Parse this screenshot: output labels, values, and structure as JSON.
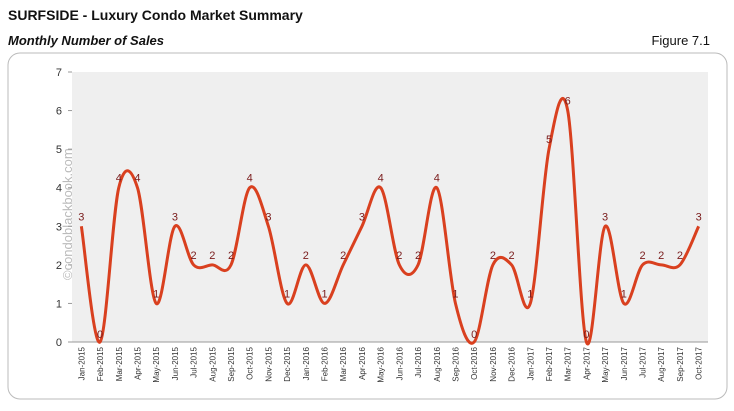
{
  "chart_data": {
    "type": "line",
    "title": "SURFSIDE - Luxury Condo Market Summary",
    "subtitle": "Monthly Number of Sales",
    "figure_label": "Figure 7.1",
    "watermark": "©condoblackbook.com",
    "categories": [
      "Jan-2015",
      "Feb-2015",
      "Mar-2015",
      "Apr-2015",
      "May-2015",
      "Jun-2015",
      "Jul-2015",
      "Aug-2015",
      "Sep-2015",
      "Oct-2015",
      "Nov-2015",
      "Dec-2015",
      "Jan-2016",
      "Feb-2016",
      "Mar-2016",
      "Apr-2016",
      "May-2016",
      "Jun-2016",
      "Jul-2016",
      "Aug-2016",
      "Sep-2016",
      "Oct-2016",
      "Nov-2016",
      "Dec-2016",
      "Jan-2017",
      "Feb-2017",
      "Mar-2017",
      "Apr-2017",
      "May-2017",
      "Jun-2017",
      "Jul-2017",
      "Aug-2017",
      "Sep-2017",
      "Oct-2017"
    ],
    "values": [
      3,
      0,
      4,
      4,
      1,
      3,
      2,
      2,
      2,
      4,
      3,
      1,
      2,
      1,
      2,
      3,
      4,
      2,
      2,
      4,
      1,
      0,
      2,
      2,
      1,
      5,
      6,
      0,
      3,
      1,
      2,
      2,
      2,
      3
    ],
    "color": "#d9401f",
    "label_color": "#7a1c1c",
    "ylim": [
      0,
      7
    ],
    "yticks": [
      0,
      1,
      2,
      3,
      4,
      5,
      6,
      7
    ]
  }
}
